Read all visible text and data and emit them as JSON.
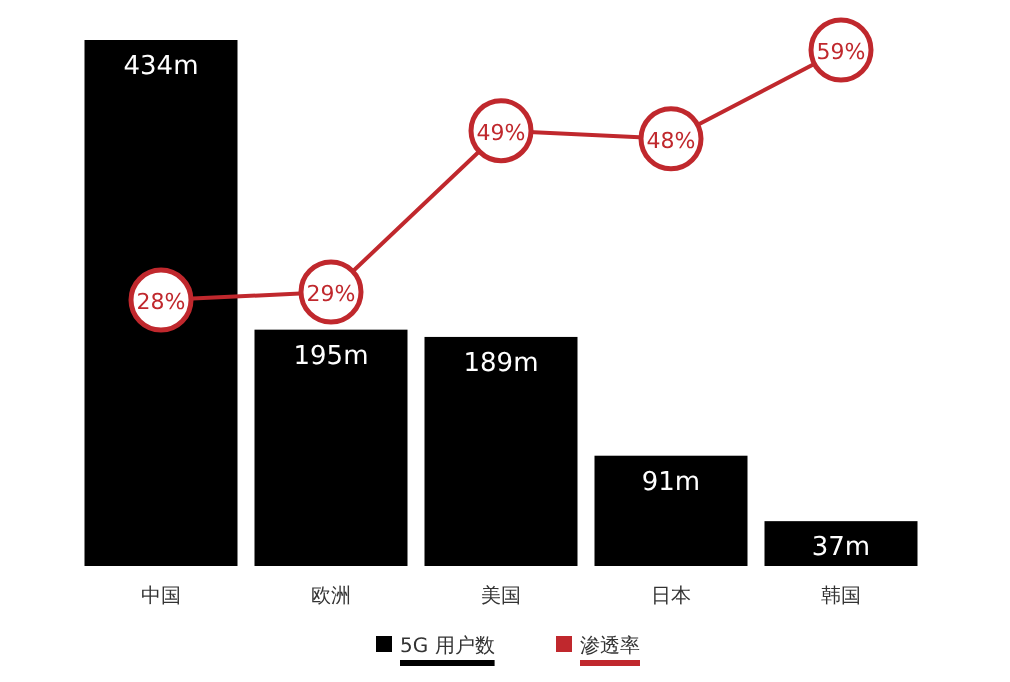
{
  "chart_data": {
    "type": "bar",
    "categories": [
      "中国",
      "欧洲",
      "美国",
      "日本",
      "韩国"
    ],
    "series": [
      {
        "name": "5G 用户数",
        "type": "bar",
        "color": "#000000",
        "values": [
          434,
          195,
          189,
          91,
          37
        ],
        "value_labels": [
          "434m",
          "195m",
          "189m",
          "91m",
          "37m"
        ]
      },
      {
        "name": "渗透率",
        "type": "line",
        "axis": "y2",
        "color": "#c0282d",
        "marker": "circle",
        "values": [
          28,
          29,
          49,
          48,
          59
        ],
        "value_labels": [
          "28%",
          "29%",
          "49%",
          "48%",
          "59%"
        ]
      }
    ],
    "legend": "bottom"
  }
}
